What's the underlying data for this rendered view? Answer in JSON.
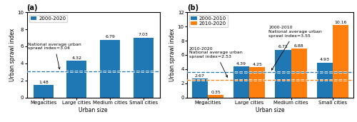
{
  "chart_data": [
    {
      "type": "bar",
      "title": "(a)",
      "xlabel": "Urban size",
      "ylabel": "Urban sprawl index",
      "categories": [
        "Megacities",
        "Large cities",
        "Medium cities",
        "Small cities"
      ],
      "series": [
        {
          "name": "2000-2020",
          "values": [
            1.48,
            4.32,
            6.79,
            7.03
          ],
          "average": 3.04,
          "average_text": "National average urban\nsprawl index=3.04"
        }
      ],
      "ylim": [
        0,
        10
      ],
      "yticks": [
        0,
        2,
        4,
        6,
        8,
        10
      ],
      "data_labels": true,
      "legend": "upper left"
    },
    {
      "type": "bar",
      "title": "(b)",
      "xlabel": "Urban size",
      "ylabel": "Urban sprawl index",
      "categories": [
        "Megacities",
        "Large cities",
        "Medium cities",
        "Small cities"
      ],
      "series": [
        {
          "name": "2000-2010",
          "values": [
            2.67,
            4.39,
            6.71,
            4.93
          ],
          "average": 3.55,
          "average_text": "2000-2010\nNational average urban\nsprawl index=3.55"
        },
        {
          "name": "2010-2020",
          "values": [
            0.35,
            4.25,
            6.88,
            10.16
          ],
          "average": 2.53,
          "average_text": "2010-2020\nNational average urban\nsprawl index=2.53"
        }
      ],
      "ylim": [
        0,
        12
      ],
      "yticks": [
        0,
        2,
        4,
        6,
        8,
        10,
        12
      ],
      "data_labels": true,
      "legend": "upper left"
    }
  ]
}
